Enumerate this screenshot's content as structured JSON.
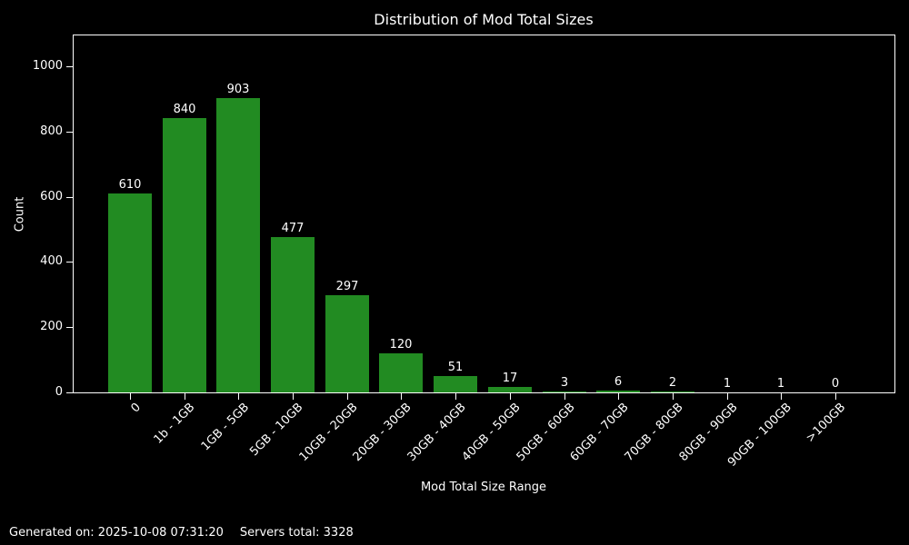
{
  "title": "Distribution of Mod Total Sizes",
  "footer": {
    "generated_on": "Generated on: 2025-10-08 07:31:20",
    "servers_total": "Servers total: 3328"
  },
  "chart_data": {
    "type": "bar",
    "title": "Distribution of Mod Total Sizes",
    "xlabel": "Mod Total Size Range",
    "ylabel": "Count",
    "categories": [
      "0",
      "1b - 1GB",
      "1GB - 5GB",
      "5GB - 10GB",
      "10GB - 20GB",
      "20GB - 30GB",
      "30GB - 40GB",
      "40GB - 50GB",
      "50GB - 60GB",
      "60GB - 70GB",
      "70GB - 80GB",
      "80GB - 90GB",
      "90GB - 100GB",
      ">100GB"
    ],
    "values": [
      610,
      840,
      903,
      477,
      297,
      120,
      51,
      17,
      3,
      6,
      2,
      1,
      1,
      0
    ],
    "yticks": [
      0,
      200,
      400,
      600,
      800,
      1000
    ],
    "ylim": [
      0,
      1097
    ],
    "grid": false,
    "legend": "none",
    "bar_color": "#228B22",
    "background_color": "#000000",
    "text_color": "#ffffff",
    "spine_color": "#ffffff"
  }
}
